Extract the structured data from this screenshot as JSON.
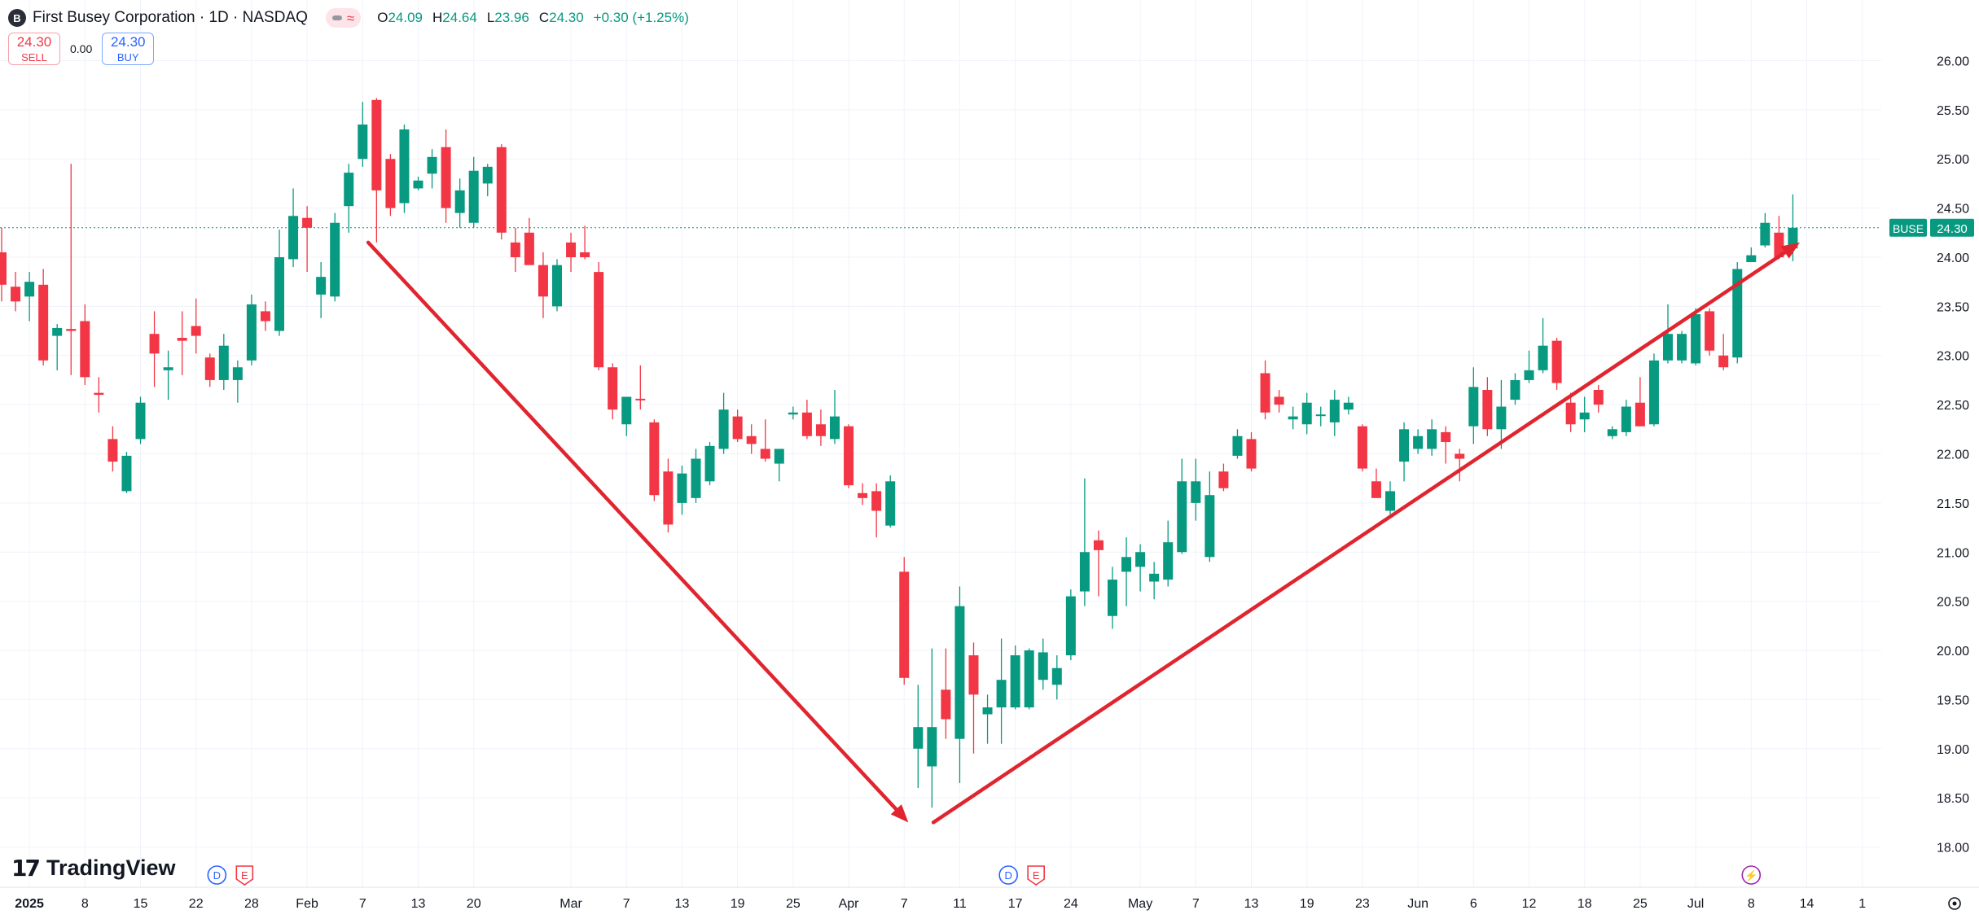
{
  "header": {
    "logo_letter": "B",
    "title": "First Busey Corporation · 1D · NASDAQ",
    "pill_symbol": "≈",
    "ohlc": {
      "o_label": "O",
      "o": "24.09",
      "h_label": "H",
      "h": "24.64",
      "l_label": "L",
      "l": "23.96",
      "c_label": "C",
      "c": "24.30",
      "change": "+0.30 (+1.25%)"
    }
  },
  "trade": {
    "sell_price": "24.30",
    "sell_label": "SELL",
    "spread": "0.00",
    "buy_price": "24.30",
    "buy_label": "BUY"
  },
  "brand": {
    "name": "TradingView"
  },
  "colors": {
    "up": "#089981",
    "down": "#f23645",
    "arrow": "#e0252f",
    "grid": "#f0f3fa",
    "text": "#131722"
  },
  "chart_data": {
    "type": "candlestick",
    "symbol": "BUSE",
    "last_price": 24.3,
    "y_ticks": [
      18.0,
      18.5,
      19.0,
      19.5,
      20.0,
      20.5,
      21.0,
      21.5,
      22.0,
      22.5,
      23.0,
      23.5,
      24.0,
      24.5,
      25.0,
      25.5,
      26.0
    ],
    "y_range": [
      17.88,
      26.12
    ],
    "x_labels": [
      {
        "text": "2025",
        "index": 2
      },
      {
        "text": "8",
        "index": 6
      },
      {
        "text": "15",
        "index": 10
      },
      {
        "text": "22",
        "index": 14
      },
      {
        "text": "28",
        "index": 18
      },
      {
        "text": "Feb",
        "index": 22
      },
      {
        "text": "7",
        "index": 26
      },
      {
        "text": "13",
        "index": 30
      },
      {
        "text": "20",
        "index": 34
      },
      {
        "text": "Mar",
        "index": 41
      },
      {
        "text": "7",
        "index": 45
      },
      {
        "text": "13",
        "index": 49
      },
      {
        "text": "19",
        "index": 53
      },
      {
        "text": "25",
        "index": 57
      },
      {
        "text": "Apr",
        "index": 61
      },
      {
        "text": "7",
        "index": 65
      },
      {
        "text": "11",
        "index": 69
      },
      {
        "text": "17",
        "index": 73
      },
      {
        "text": "24",
        "index": 77
      },
      {
        "text": "May",
        "index": 82
      },
      {
        "text": "7",
        "index": 86
      },
      {
        "text": "13",
        "index": 90
      },
      {
        "text": "19",
        "index": 94
      },
      {
        "text": "23",
        "index": 98
      },
      {
        "text": "Jun",
        "index": 102
      },
      {
        "text": "6",
        "index": 106
      },
      {
        "text": "12",
        "index": 110
      },
      {
        "text": "18",
        "index": 114
      },
      {
        "text": "25",
        "index": 118
      },
      {
        "text": "Jul",
        "index": 122
      },
      {
        "text": "8",
        "index": 126
      },
      {
        "text": "14",
        "index": 130
      },
      {
        "text": "1",
        "index": 134
      }
    ],
    "event_markers": [
      {
        "index": 16.5,
        "icons": [
          "D",
          "E"
        ]
      },
      {
        "index": 73.5,
        "icons": [
          "D",
          "E"
        ]
      },
      {
        "index": 126,
        "icons": [
          "⚡"
        ]
      }
    ],
    "trend_arrows": [
      {
        "from": {
          "index": 26.4,
          "value": 24.15
        },
        "to": {
          "index": 65.3,
          "value": 18.25
        }
      },
      {
        "from": {
          "index": 67.1,
          "value": 18.25
        },
        "to": {
          "index": 129.5,
          "value": 24.15
        }
      }
    ],
    "candles": [
      {
        "o": 24.05,
        "h": 24.3,
        "l": 23.55,
        "c": 23.72
      },
      {
        "o": 23.7,
        "h": 23.85,
        "l": 23.45,
        "c": 23.55
      },
      {
        "o": 23.6,
        "h": 23.85,
        "l": 23.35,
        "c": 23.75
      },
      {
        "o": 23.72,
        "h": 23.88,
        "l": 22.9,
        "c": 22.95
      },
      {
        "o": 23.2,
        "h": 23.32,
        "l": 22.85,
        "c": 23.28
      },
      {
        "o": 23.27,
        "h": 24.95,
        "l": 22.8,
        "c": 23.25
      },
      {
        "o": 23.35,
        "h": 23.52,
        "l": 22.7,
        "c": 22.78
      },
      {
        "o": 22.62,
        "h": 22.78,
        "l": 22.42,
        "c": 22.6
      },
      {
        "o": 22.15,
        "h": 22.28,
        "l": 21.82,
        "c": 21.92
      },
      {
        "o": 21.62,
        "h": 22.02,
        "l": 21.6,
        "c": 21.98
      },
      {
        "o": 22.15,
        "h": 22.58,
        "l": 22.1,
        "c": 22.52
      },
      {
        "o": 23.22,
        "h": 23.45,
        "l": 22.68,
        "c": 23.02
      },
      {
        "o": 22.85,
        "h": 23.05,
        "l": 22.55,
        "c": 22.88
      },
      {
        "o": 23.18,
        "h": 23.45,
        "l": 22.8,
        "c": 23.15
      },
      {
        "o": 23.3,
        "h": 23.58,
        "l": 23.02,
        "c": 23.2
      },
      {
        "o": 22.98,
        "h": 23.02,
        "l": 22.68,
        "c": 22.75
      },
      {
        "o": 22.75,
        "h": 23.22,
        "l": 22.65,
        "c": 23.1
      },
      {
        "o": 22.75,
        "h": 22.95,
        "l": 22.52,
        "c": 22.88
      },
      {
        "o": 22.95,
        "h": 23.62,
        "l": 22.9,
        "c": 23.52
      },
      {
        "o": 23.45,
        "h": 23.55,
        "l": 23.25,
        "c": 23.35
      },
      {
        "o": 23.25,
        "h": 24.28,
        "l": 23.2,
        "c": 24.0
      },
      {
        "o": 23.98,
        "h": 24.7,
        "l": 23.9,
        "c": 24.42
      },
      {
        "o": 24.4,
        "h": 24.52,
        "l": 23.85,
        "c": 24.3
      },
      {
        "o": 23.62,
        "h": 23.95,
        "l": 23.38,
        "c": 23.8
      },
      {
        "o": 23.6,
        "h": 24.45,
        "l": 23.55,
        "c": 24.35
      },
      {
        "o": 24.52,
        "h": 24.95,
        "l": 24.25,
        "c": 24.86
      },
      {
        "o": 25.0,
        "h": 25.58,
        "l": 24.92,
        "c": 25.35
      },
      {
        "o": 25.6,
        "h": 25.62,
        "l": 24.15,
        "c": 24.68
      },
      {
        "o": 25.0,
        "h": 25.05,
        "l": 24.42,
        "c": 24.5
      },
      {
        "o": 24.55,
        "h": 25.35,
        "l": 24.45,
        "c": 25.3
      },
      {
        "o": 24.7,
        "h": 24.82,
        "l": 24.68,
        "c": 24.78
      },
      {
        "o": 24.85,
        "h": 25.1,
        "l": 24.7,
        "c": 25.02
      },
      {
        "o": 25.12,
        "h": 25.3,
        "l": 24.35,
        "c": 24.5
      },
      {
        "o": 24.45,
        "h": 24.8,
        "l": 24.3,
        "c": 24.68
      },
      {
        "o": 24.35,
        "h": 25.02,
        "l": 24.3,
        "c": 24.88
      },
      {
        "o": 24.75,
        "h": 24.95,
        "l": 24.62,
        "c": 24.92
      },
      {
        "o": 25.12,
        "h": 25.15,
        "l": 24.18,
        "c": 24.25
      },
      {
        "o": 24.15,
        "h": 24.3,
        "l": 23.85,
        "c": 24.0
      },
      {
        "o": 24.25,
        "h": 24.4,
        "l": 23.95,
        "c": 23.92
      },
      {
        "o": 23.92,
        "h": 24.05,
        "l": 23.38,
        "c": 23.6
      },
      {
        "o": 23.5,
        "h": 23.98,
        "l": 23.45,
        "c": 23.92
      },
      {
        "o": 24.15,
        "h": 24.25,
        "l": 23.85,
        "c": 24.0
      },
      {
        "o": 24.05,
        "h": 24.32,
        "l": 23.98,
        "c": 24.0
      },
      {
        "o": 23.85,
        "h": 23.95,
        "l": 22.85,
        "c": 22.88
      },
      {
        "o": 22.88,
        "h": 22.92,
        "l": 22.35,
        "c": 22.45
      },
      {
        "o": 22.3,
        "h": 22.55,
        "l": 22.18,
        "c": 22.58
      },
      {
        "o": 22.56,
        "h": 22.9,
        "l": 22.45,
        "c": 22.55
      },
      {
        "o": 22.32,
        "h": 22.35,
        "l": 21.52,
        "c": 21.58
      },
      {
        "o": 21.82,
        "h": 21.95,
        "l": 21.2,
        "c": 21.28
      },
      {
        "o": 21.5,
        "h": 21.88,
        "l": 21.38,
        "c": 21.8
      },
      {
        "o": 21.55,
        "h": 22.05,
        "l": 21.5,
        "c": 21.95
      },
      {
        "o": 21.72,
        "h": 22.12,
        "l": 21.68,
        "c": 22.08
      },
      {
        "o": 22.05,
        "h": 22.62,
        "l": 22.0,
        "c": 22.45
      },
      {
        "o": 22.38,
        "h": 22.45,
        "l": 22.12,
        "c": 22.15
      },
      {
        "o": 22.18,
        "h": 22.3,
        "l": 22.0,
        "c": 22.1
      },
      {
        "o": 22.05,
        "h": 22.35,
        "l": 21.92,
        "c": 21.95
      },
      {
        "o": 21.9,
        "h": 22.05,
        "l": 21.72,
        "c": 22.05
      },
      {
        "o": 22.4,
        "h": 22.48,
        "l": 22.35,
        "c": 22.42
      },
      {
        "o": 22.42,
        "h": 22.55,
        "l": 22.15,
        "c": 22.18
      },
      {
        "o": 22.3,
        "h": 22.45,
        "l": 22.08,
        "c": 22.18
      },
      {
        "o": 22.15,
        "h": 22.65,
        "l": 22.1,
        "c": 22.38
      },
      {
        "o": 22.28,
        "h": 22.3,
        "l": 21.65,
        "c": 21.68
      },
      {
        "o": 21.6,
        "h": 21.7,
        "l": 21.48,
        "c": 21.55
      },
      {
        "o": 21.62,
        "h": 21.7,
        "l": 21.15,
        "c": 21.42
      },
      {
        "o": 21.27,
        "h": 21.78,
        "l": 21.25,
        "c": 21.72
      },
      {
        "o": 20.8,
        "h": 20.95,
        "l": 19.65,
        "c": 19.72
      },
      {
        "o": 19.0,
        "h": 19.65,
        "l": 18.6,
        "c": 19.22
      },
      {
        "o": 18.82,
        "h": 20.02,
        "l": 18.4,
        "c": 19.22
      },
      {
        "o": 19.6,
        "h": 20.02,
        "l": 19.1,
        "c": 19.3
      },
      {
        "o": 19.1,
        "h": 20.65,
        "l": 18.65,
        "c": 20.45
      },
      {
        "o": 19.95,
        "h": 20.08,
        "l": 18.95,
        "c": 19.55
      },
      {
        "o": 19.35,
        "h": 19.55,
        "l": 19.05,
        "c": 19.42
      },
      {
        "o": 19.42,
        "h": 20.12,
        "l": 19.05,
        "c": 19.7
      },
      {
        "o": 19.42,
        "h": 20.05,
        "l": 19.4,
        "c": 19.95
      },
      {
        "o": 19.42,
        "h": 20.02,
        "l": 19.4,
        "c": 20.0
      },
      {
        "o": 19.7,
        "h": 20.12,
        "l": 19.6,
        "c": 19.98
      },
      {
        "o": 19.65,
        "h": 19.95,
        "l": 19.5,
        "c": 19.82
      },
      {
        "o": 19.95,
        "h": 20.62,
        "l": 19.9,
        "c": 20.55
      },
      {
        "o": 20.6,
        "h": 21.75,
        "l": 20.45,
        "c": 21.0
      },
      {
        "o": 21.12,
        "h": 21.22,
        "l": 20.55,
        "c": 21.02
      },
      {
        "o": 20.35,
        "h": 20.85,
        "l": 20.22,
        "c": 20.72
      },
      {
        "o": 20.8,
        "h": 21.15,
        "l": 20.45,
        "c": 20.95
      },
      {
        "o": 20.85,
        "h": 21.08,
        "l": 20.6,
        "c": 21.0
      },
      {
        "o": 20.7,
        "h": 20.9,
        "l": 20.52,
        "c": 20.78
      },
      {
        "o": 20.72,
        "h": 21.32,
        "l": 20.65,
        "c": 21.1
      },
      {
        "o": 21.0,
        "h": 21.95,
        "l": 20.98,
        "c": 21.72
      },
      {
        "o": 21.5,
        "h": 21.95,
        "l": 21.32,
        "c": 21.72
      },
      {
        "o": 20.95,
        "h": 21.82,
        "l": 20.9,
        "c": 21.58
      },
      {
        "o": 21.82,
        "h": 21.9,
        "l": 21.62,
        "c": 21.65
      },
      {
        "o": 21.98,
        "h": 22.25,
        "l": 21.95,
        "c": 22.18
      },
      {
        "o": 22.15,
        "h": 22.22,
        "l": 21.82,
        "c": 21.85
      },
      {
        "o": 22.82,
        "h": 22.95,
        "l": 22.35,
        "c": 22.42
      },
      {
        "o": 22.58,
        "h": 22.65,
        "l": 22.42,
        "c": 22.5
      },
      {
        "o": 22.35,
        "h": 22.48,
        "l": 22.25,
        "c": 22.38
      },
      {
        "o": 22.3,
        "h": 22.62,
        "l": 22.2,
        "c": 22.52
      },
      {
        "o": 22.4,
        "h": 22.48,
        "l": 22.28,
        "c": 22.4
      },
      {
        "o": 22.32,
        "h": 22.65,
        "l": 22.18,
        "c": 22.55
      },
      {
        "o": 22.45,
        "h": 22.58,
        "l": 22.4,
        "c": 22.52
      },
      {
        "o": 22.28,
        "h": 22.3,
        "l": 21.82,
        "c": 21.85
      },
      {
        "o": 21.72,
        "h": 21.85,
        "l": 21.58,
        "c": 21.55
      },
      {
        "o": 21.42,
        "h": 21.72,
        "l": 21.38,
        "c": 21.62
      },
      {
        "o": 21.92,
        "h": 22.32,
        "l": 21.72,
        "c": 22.25
      },
      {
        "o": 22.05,
        "h": 22.25,
        "l": 22.0,
        "c": 22.18
      },
      {
        "o": 22.05,
        "h": 22.35,
        "l": 21.98,
        "c": 22.25
      },
      {
        "o": 22.22,
        "h": 22.28,
        "l": 21.9,
        "c": 22.12
      },
      {
        "o": 22.0,
        "h": 22.05,
        "l": 21.72,
        "c": 21.95
      },
      {
        "o": 22.28,
        "h": 22.88,
        "l": 22.1,
        "c": 22.68
      },
      {
        "o": 22.65,
        "h": 22.78,
        "l": 22.18,
        "c": 22.25
      },
      {
        "o": 22.25,
        "h": 22.75,
        "l": 22.05,
        "c": 22.48
      },
      {
        "o": 22.55,
        "h": 22.82,
        "l": 22.5,
        "c": 22.75
      },
      {
        "o": 22.75,
        "h": 23.05,
        "l": 22.72,
        "c": 22.85
      },
      {
        "o": 22.85,
        "h": 23.38,
        "l": 22.82,
        "c": 23.1
      },
      {
        "o": 23.15,
        "h": 23.18,
        "l": 22.65,
        "c": 22.72
      },
      {
        "o": 22.52,
        "h": 22.62,
        "l": 22.22,
        "c": 22.3
      },
      {
        "o": 22.35,
        "h": 22.58,
        "l": 22.22,
        "c": 22.42
      },
      {
        "o": 22.65,
        "h": 22.7,
        "l": 22.42,
        "c": 22.5
      },
      {
        "o": 22.18,
        "h": 22.28,
        "l": 22.15,
        "c": 22.25
      },
      {
        "o": 22.22,
        "h": 22.55,
        "l": 22.18,
        "c": 22.48
      },
      {
        "o": 22.52,
        "h": 22.78,
        "l": 22.28,
        "c": 22.28
      },
      {
        "o": 22.3,
        "h": 23.02,
        "l": 22.28,
        "c": 22.95
      },
      {
        "o": 22.95,
        "h": 23.52,
        "l": 22.92,
        "c": 23.22
      },
      {
        "o": 22.95,
        "h": 23.25,
        "l": 22.92,
        "c": 23.22
      },
      {
        "o": 22.92,
        "h": 23.48,
        "l": 22.9,
        "c": 23.42
      },
      {
        "o": 23.45,
        "h": 23.48,
        "l": 23.0,
        "c": 23.05
      },
      {
        "o": 23.0,
        "h": 23.22,
        "l": 22.85,
        "c": 22.88
      },
      {
        "o": 22.98,
        "h": 23.95,
        "l": 22.92,
        "c": 23.88
      },
      {
        "o": 23.95,
        "h": 24.1,
        "l": 23.95,
        "c": 24.02
      },
      {
        "o": 24.12,
        "h": 24.45,
        "l": 24.1,
        "c": 24.35
      },
      {
        "o": 24.25,
        "h": 24.42,
        "l": 23.98,
        "c": 24.0
      },
      {
        "o": 24.09,
        "h": 24.64,
        "l": 23.96,
        "c": 24.3
      }
    ]
  }
}
